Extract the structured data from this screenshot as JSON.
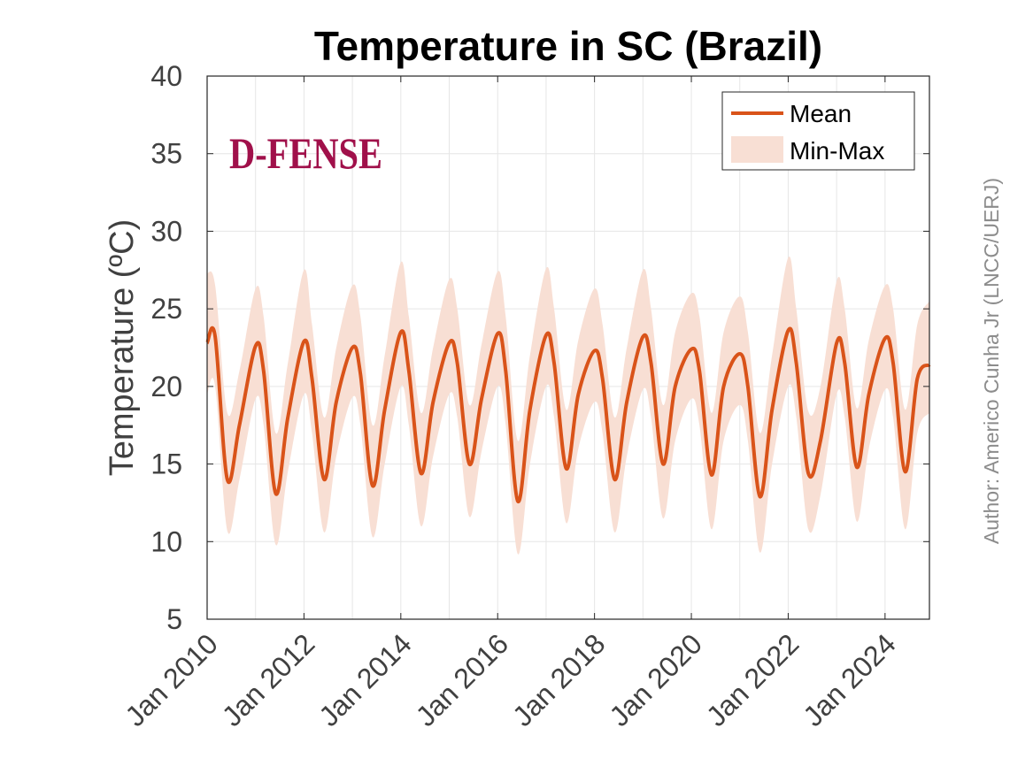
{
  "chart_data": {
    "type": "line",
    "title": "Temperature in SC (Brazil)",
    "ylabel": "Temperature (ºC)",
    "xlabel": "",
    "xlim": [
      "2010-01",
      "2024-12"
    ],
    "ylim": [
      5,
      40
    ],
    "yticks": [
      5,
      10,
      15,
      20,
      25,
      30,
      35,
      40
    ],
    "xticks": [
      "Jan 2010",
      "Jan 2012",
      "Jan 2014",
      "Jan 2016",
      "Jan 2018",
      "Jan 2020",
      "Jan 2022",
      "Jan 2024"
    ],
    "grid": true,
    "legend": {
      "placement": "top-right",
      "entries": [
        "Mean",
        "Min-Max"
      ]
    },
    "colors": {
      "mean": "#d95319",
      "band": "#f8dfd4",
      "axes": "#262626",
      "ticks": "#404040"
    },
    "series": [
      {
        "name": "Mean",
        "x": [
          "2010-01",
          "2010-03",
          "2010-06",
          "2010-09",
          "2011-01",
          "2011-03",
          "2011-06",
          "2011-09",
          "2012-01",
          "2012-03",
          "2012-06",
          "2012-09",
          "2013-01",
          "2013-03",
          "2013-06",
          "2013-09",
          "2014-01",
          "2014-03",
          "2014-06",
          "2014-09",
          "2015-01",
          "2015-03",
          "2015-06",
          "2015-09",
          "2016-01",
          "2016-03",
          "2016-06",
          "2016-09",
          "2017-01",
          "2017-03",
          "2017-06",
          "2017-09",
          "2018-01",
          "2018-03",
          "2018-06",
          "2018-09",
          "2019-01",
          "2019-03",
          "2019-06",
          "2019-09",
          "2020-01",
          "2020-03",
          "2020-06",
          "2020-09",
          "2021-01",
          "2021-03",
          "2021-06",
          "2021-09",
          "2022-01",
          "2022-03",
          "2022-06",
          "2022-09",
          "2023-01",
          "2023-03",
          "2023-06",
          "2023-09",
          "2024-01",
          "2024-03",
          "2024-06",
          "2024-09",
          "2024-12"
        ],
        "values": [
          22.8,
          23.2,
          14.0,
          17.5,
          22.6,
          21.0,
          13.1,
          18.0,
          22.9,
          20.5,
          14.0,
          19.0,
          22.5,
          20.8,
          13.6,
          18.5,
          23.5,
          21.0,
          14.4,
          19.0,
          22.8,
          21.5,
          15.0,
          19.2,
          23.4,
          21.0,
          12.6,
          18.5,
          23.3,
          21.5,
          14.7,
          19.5,
          22.3,
          20.5,
          14.0,
          19.0,
          23.2,
          21.5,
          15.0,
          20.0,
          22.4,
          21.0,
          14.3,
          20.0,
          22.1,
          20.0,
          12.9,
          18.5,
          23.6,
          21.5,
          14.4,
          16.5,
          22.8,
          21.5,
          14.8,
          19.5,
          23.1,
          21.5,
          14.5,
          20.5,
          21.4
        ]
      },
      {
        "name": "Min-Max",
        "x": [
          "2010-01",
          "2010-03",
          "2010-06",
          "2010-09",
          "2011-01",
          "2011-03",
          "2011-06",
          "2011-09",
          "2012-01",
          "2012-03",
          "2012-06",
          "2012-09",
          "2013-01",
          "2013-03",
          "2013-06",
          "2013-09",
          "2014-01",
          "2014-03",
          "2014-06",
          "2014-09",
          "2015-01",
          "2015-03",
          "2015-06",
          "2015-09",
          "2016-01",
          "2016-03",
          "2016-06",
          "2016-09",
          "2017-01",
          "2017-03",
          "2017-06",
          "2017-09",
          "2018-01",
          "2018-03",
          "2018-06",
          "2018-09",
          "2019-01",
          "2019-03",
          "2019-06",
          "2019-09",
          "2020-01",
          "2020-03",
          "2020-06",
          "2020-09",
          "2021-01",
          "2021-03",
          "2021-06",
          "2021-09",
          "2022-01",
          "2022-03",
          "2022-06",
          "2022-09",
          "2023-01",
          "2023-03",
          "2023-06",
          "2023-09",
          "2024-01",
          "2024-03",
          "2024-06",
          "2024-09",
          "2024-12"
        ],
        "min": [
          19.5,
          20.0,
          10.7,
          14.0,
          19.2,
          17.5,
          9.8,
          14.5,
          19.5,
          17.0,
          10.6,
          15.5,
          19.3,
          17.5,
          10.3,
          15.0,
          20.0,
          17.5,
          11.0,
          15.5,
          19.5,
          18.0,
          11.6,
          15.8,
          20.0,
          17.5,
          9.2,
          15.0,
          20.0,
          18.0,
          11.2,
          16.0,
          19.0,
          17.0,
          10.6,
          15.5,
          19.8,
          18.0,
          11.5,
          16.5,
          19.2,
          17.5,
          10.8,
          16.5,
          18.8,
          16.5,
          9.3,
          15.0,
          20.0,
          18.0,
          10.8,
          13.0,
          19.5,
          18.0,
          11.3,
          16.0,
          19.8,
          18.0,
          10.8,
          17.0,
          18.3
        ],
        "max": [
          27.3,
          26.5,
          18.3,
          21.0,
          26.3,
          24.5,
          17.0,
          21.5,
          27.5,
          24.0,
          18.0,
          22.5,
          26.5,
          24.5,
          17.5,
          22.0,
          28.0,
          24.5,
          18.3,
          22.5,
          26.9,
          25.0,
          18.8,
          22.7,
          27.4,
          24.5,
          16.5,
          22.0,
          27.6,
          25.0,
          18.5,
          23.0,
          26.3,
          24.0,
          18.0,
          22.5,
          27.5,
          25.0,
          18.8,
          23.5,
          26.0,
          24.5,
          18.3,
          23.5,
          25.8,
          23.5,
          17.0,
          22.0,
          28.3,
          25.0,
          18.4,
          20.0,
          26.8,
          25.0,
          18.6,
          23.0,
          26.5,
          25.0,
          18.5,
          24.0,
          25.5
        ]
      }
    ]
  },
  "logo": {
    "text": "D-FENSE"
  },
  "author": "Author: Americo Cunha Jr (LNCC/UERJ)"
}
